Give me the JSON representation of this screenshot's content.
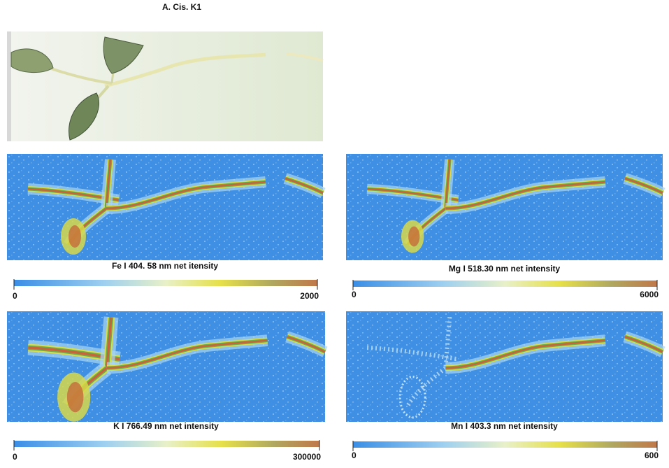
{
  "title": "A. Cis. K1",
  "panels": [
    {
      "caption": "Fe I 404. 58 nm net itensity",
      "scale": {
        "min": 0,
        "max": 2000
      }
    },
    {
      "caption": "Mg I 518.30 nm net intensity",
      "scale": {
        "min": 0,
        "max": 6000
      }
    },
    {
      "caption": "K I 766.49 nm net intensity",
      "scale": {
        "min": 0,
        "max": 300000
      }
    },
    {
      "caption": "Mn I 403.3 nm net intensity",
      "scale": {
        "min": 0,
        "max": 600
      }
    }
  ]
}
